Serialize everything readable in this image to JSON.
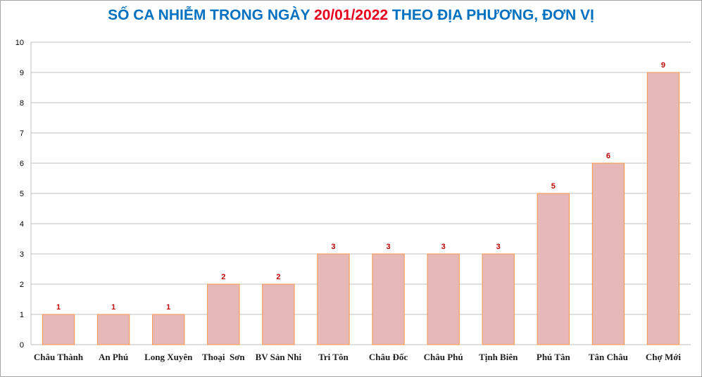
{
  "chart_data": {
    "type": "bar",
    "title_prefix": "SỐ CA NHIỄM TRONG NGÀY ",
    "title_date": "20/01/2022",
    "title_suffix": " THEO ĐỊA PHƯƠNG, ĐƠN VỊ",
    "categories": [
      "Châu Thành",
      "An Phú",
      "Long Xuyên",
      "Thoại  Sơn",
      "BV Sản Nhi",
      "Tri Tôn",
      "Châu Đốc",
      "Châu Phú",
      "Tịnh Biên",
      "Phú Tân",
      "Tân Châu",
      "Chợ Mới"
    ],
    "values": [
      1,
      1,
      1,
      2,
      2,
      3,
      3,
      3,
      3,
      5,
      6,
      9
    ],
    "ylim": [
      0,
      10
    ],
    "yticks": [
      "0",
      "1",
      "2",
      "3",
      "4",
      "5",
      "6",
      "7",
      "8",
      "9",
      "10"
    ],
    "grid": true,
    "colors": {
      "title": "#0070c0",
      "title_date": "#e8001c",
      "bar_fill": "#e6b8b7",
      "bar_stroke": "#f79646",
      "data_label": "#c00000",
      "gridline": "#bfbfbf"
    }
  }
}
